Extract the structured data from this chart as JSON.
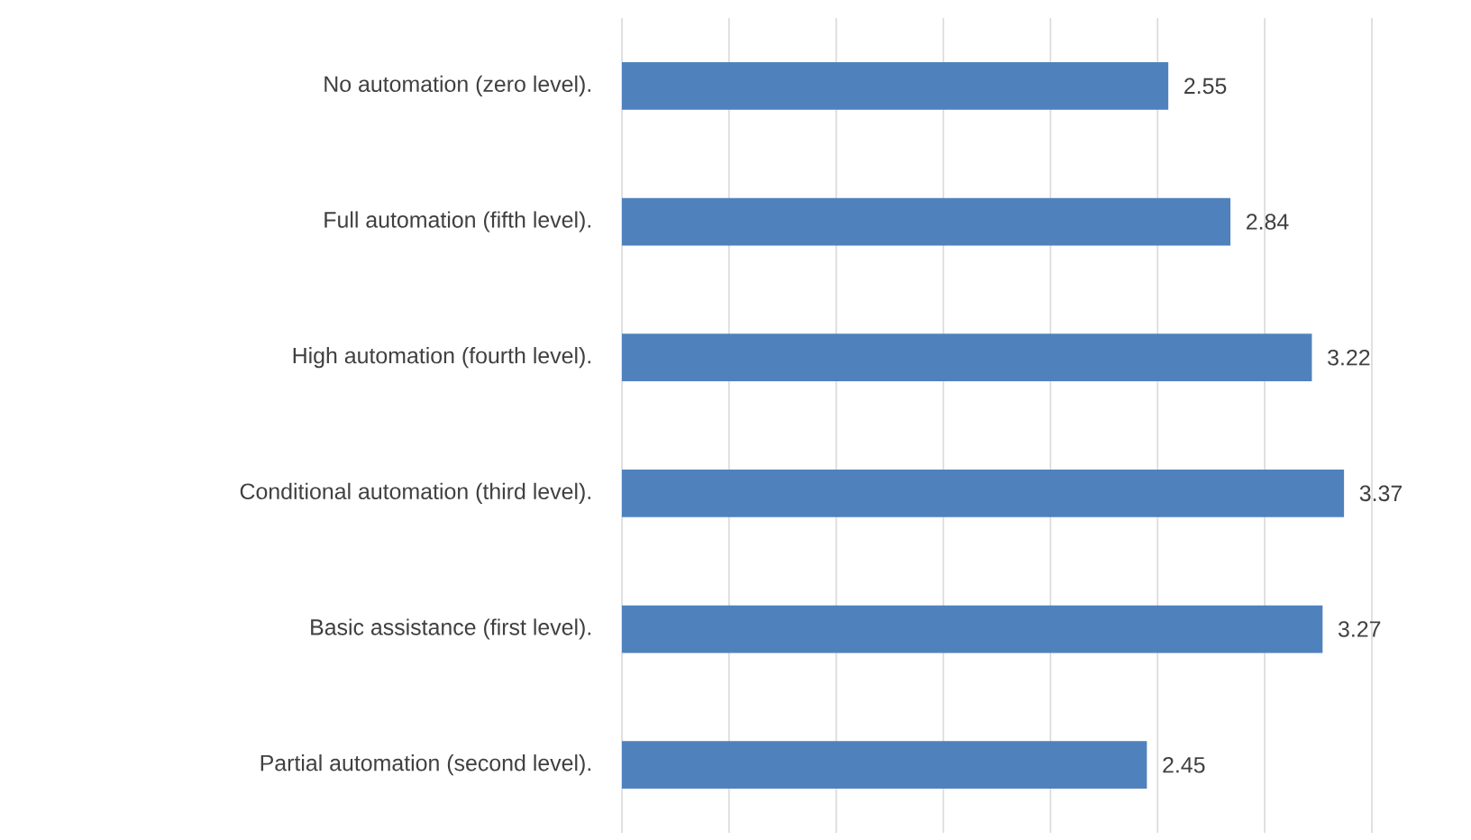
{
  "chart_data": {
    "type": "bar",
    "orientation": "horizontal",
    "categories": [
      "No automation (zero level).",
      "Full automation (fifth level).",
      "High automation (fourth level).",
      "Conditional automation (third level).",
      "Basic assistance (first level).",
      "Partial automation (second level)."
    ],
    "values": [
      2.55,
      2.84,
      3.22,
      3.37,
      3.27,
      2.45
    ],
    "color": "#4f81bd",
    "xlim": [
      0,
      3.5
    ],
    "xticks": [
      {
        "value": 0,
        "label": null
      },
      {
        "value": 0.5,
        "label": null
      },
      {
        "value": 1,
        "label": null
      },
      {
        "value": 1.5,
        "label": null
      },
      {
        "value": 2,
        "label": null
      },
      {
        "value": 2.5,
        "label": null
      },
      {
        "value": 3,
        "label": null
      },
      {
        "value": 3.5,
        "label": null
      }
    ],
    "grid": "x",
    "tick_labels": "y",
    "data_labels": true
  }
}
